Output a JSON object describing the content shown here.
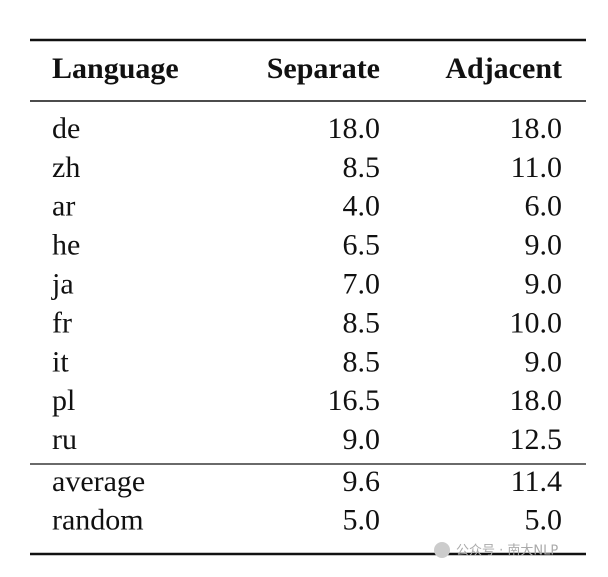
{
  "table": {
    "header": [
      "Language",
      "Separate",
      "Adjacent"
    ],
    "rows": [
      [
        "de",
        "18.0",
        "18.0"
      ],
      [
        "zh",
        "8.5",
        "11.0"
      ],
      [
        "ar",
        "4.0",
        "6.0"
      ],
      [
        "he",
        "6.5",
        "9.0"
      ],
      [
        "ja",
        "7.0",
        "9.0"
      ],
      [
        "fr",
        "8.5",
        "10.0"
      ],
      [
        "it",
        "8.5",
        "9.0"
      ],
      [
        "pl",
        "16.5",
        "18.0"
      ],
      [
        "ru",
        "9.0",
        "12.5"
      ]
    ],
    "summary_rows": [
      [
        "average",
        "9.6",
        "11.4"
      ],
      [
        "random",
        "5.0",
        "5.0"
      ]
    ]
  },
  "watermark": "公众号 · 南大NLP"
}
